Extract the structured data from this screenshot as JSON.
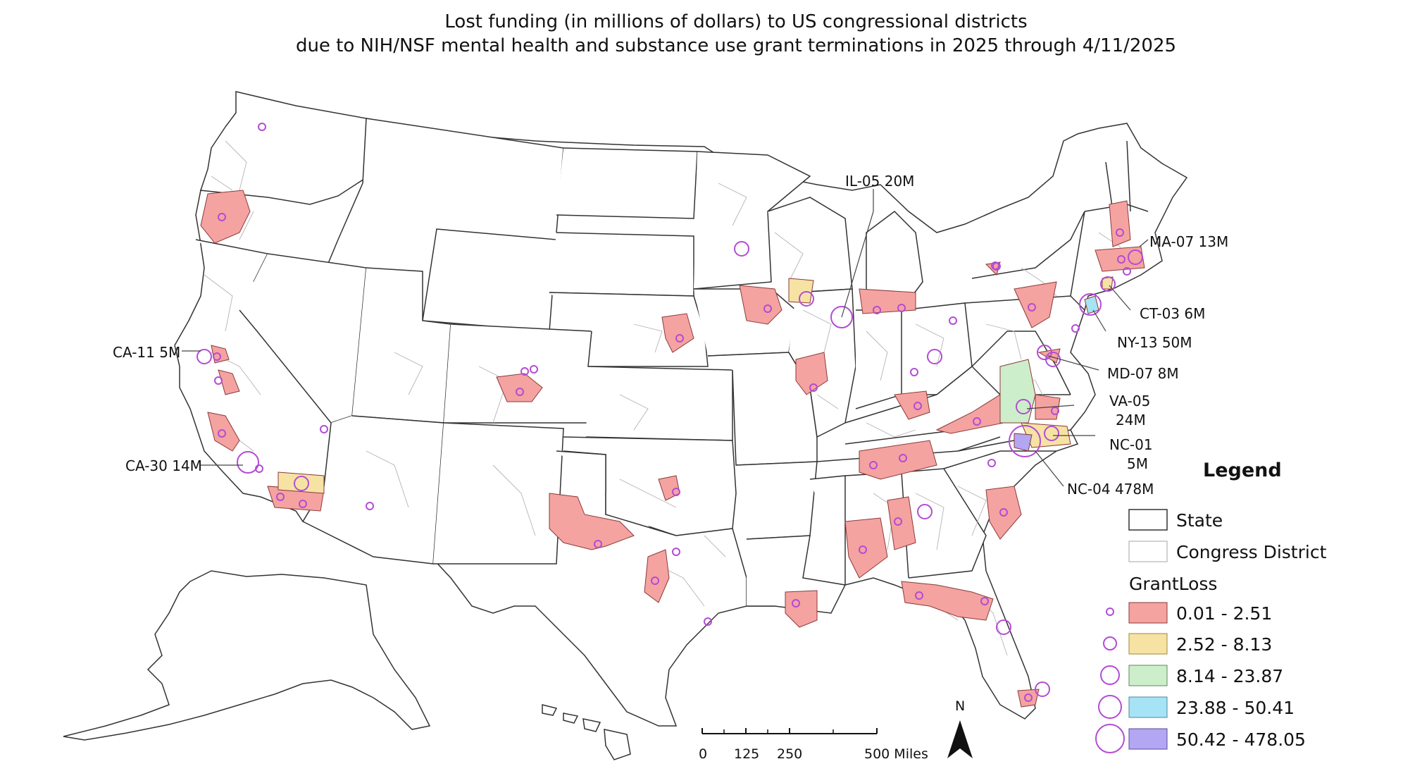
{
  "title": {
    "line1": "Lost funding (in millions of dollars) to US congressional districts",
    "line2": "due to NIH/NSF mental health and substance use grant terminations in 2025 through 4/11/2025"
  },
  "callouts": [
    {
      "id": "il05",
      "text": "IL-05 20M"
    },
    {
      "id": "ma07",
      "text": "MA-07 13M"
    },
    {
      "id": "ct03",
      "text": "CT-03 6M"
    },
    {
      "id": "ny13",
      "text": "NY-13 50M"
    },
    {
      "id": "md07",
      "text": "MD-07 8M"
    },
    {
      "id": "va05_a",
      "text": "VA-05"
    },
    {
      "id": "va05_b",
      "text": "24M"
    },
    {
      "id": "nc01_a",
      "text": "NC-01"
    },
    {
      "id": "nc01_b",
      "text": "5M"
    },
    {
      "id": "nc04",
      "text": "NC-04 478M"
    },
    {
      "id": "ca11",
      "text": "CA-11 5M"
    },
    {
      "id": "ca30",
      "text": "CA-30 14M"
    }
  ],
  "legend": {
    "title": "Legend",
    "state_label": "State",
    "district_label": "Congress District",
    "field_label": "GrantLoss",
    "classes": [
      {
        "label": "0.01 - 2.51",
        "color": "#f4a3a0"
      },
      {
        "label": "2.52 - 8.13",
        "color": "#f6e3a3"
      },
      {
        "label": "8.14 - 23.87",
        "color": "#cdeecb"
      },
      {
        "label": "23.88 - 50.41",
        "color": "#a6e3f5"
      },
      {
        "label": "50.42 - 478.05",
        "color": "#b3a6f2"
      }
    ],
    "symbol_color": "#b44bd6"
  },
  "scale_bar": {
    "ticks": [
      "0",
      "125",
      "250",
      "500 Miles"
    ]
  },
  "north_arrow": {
    "label": "N"
  }
}
